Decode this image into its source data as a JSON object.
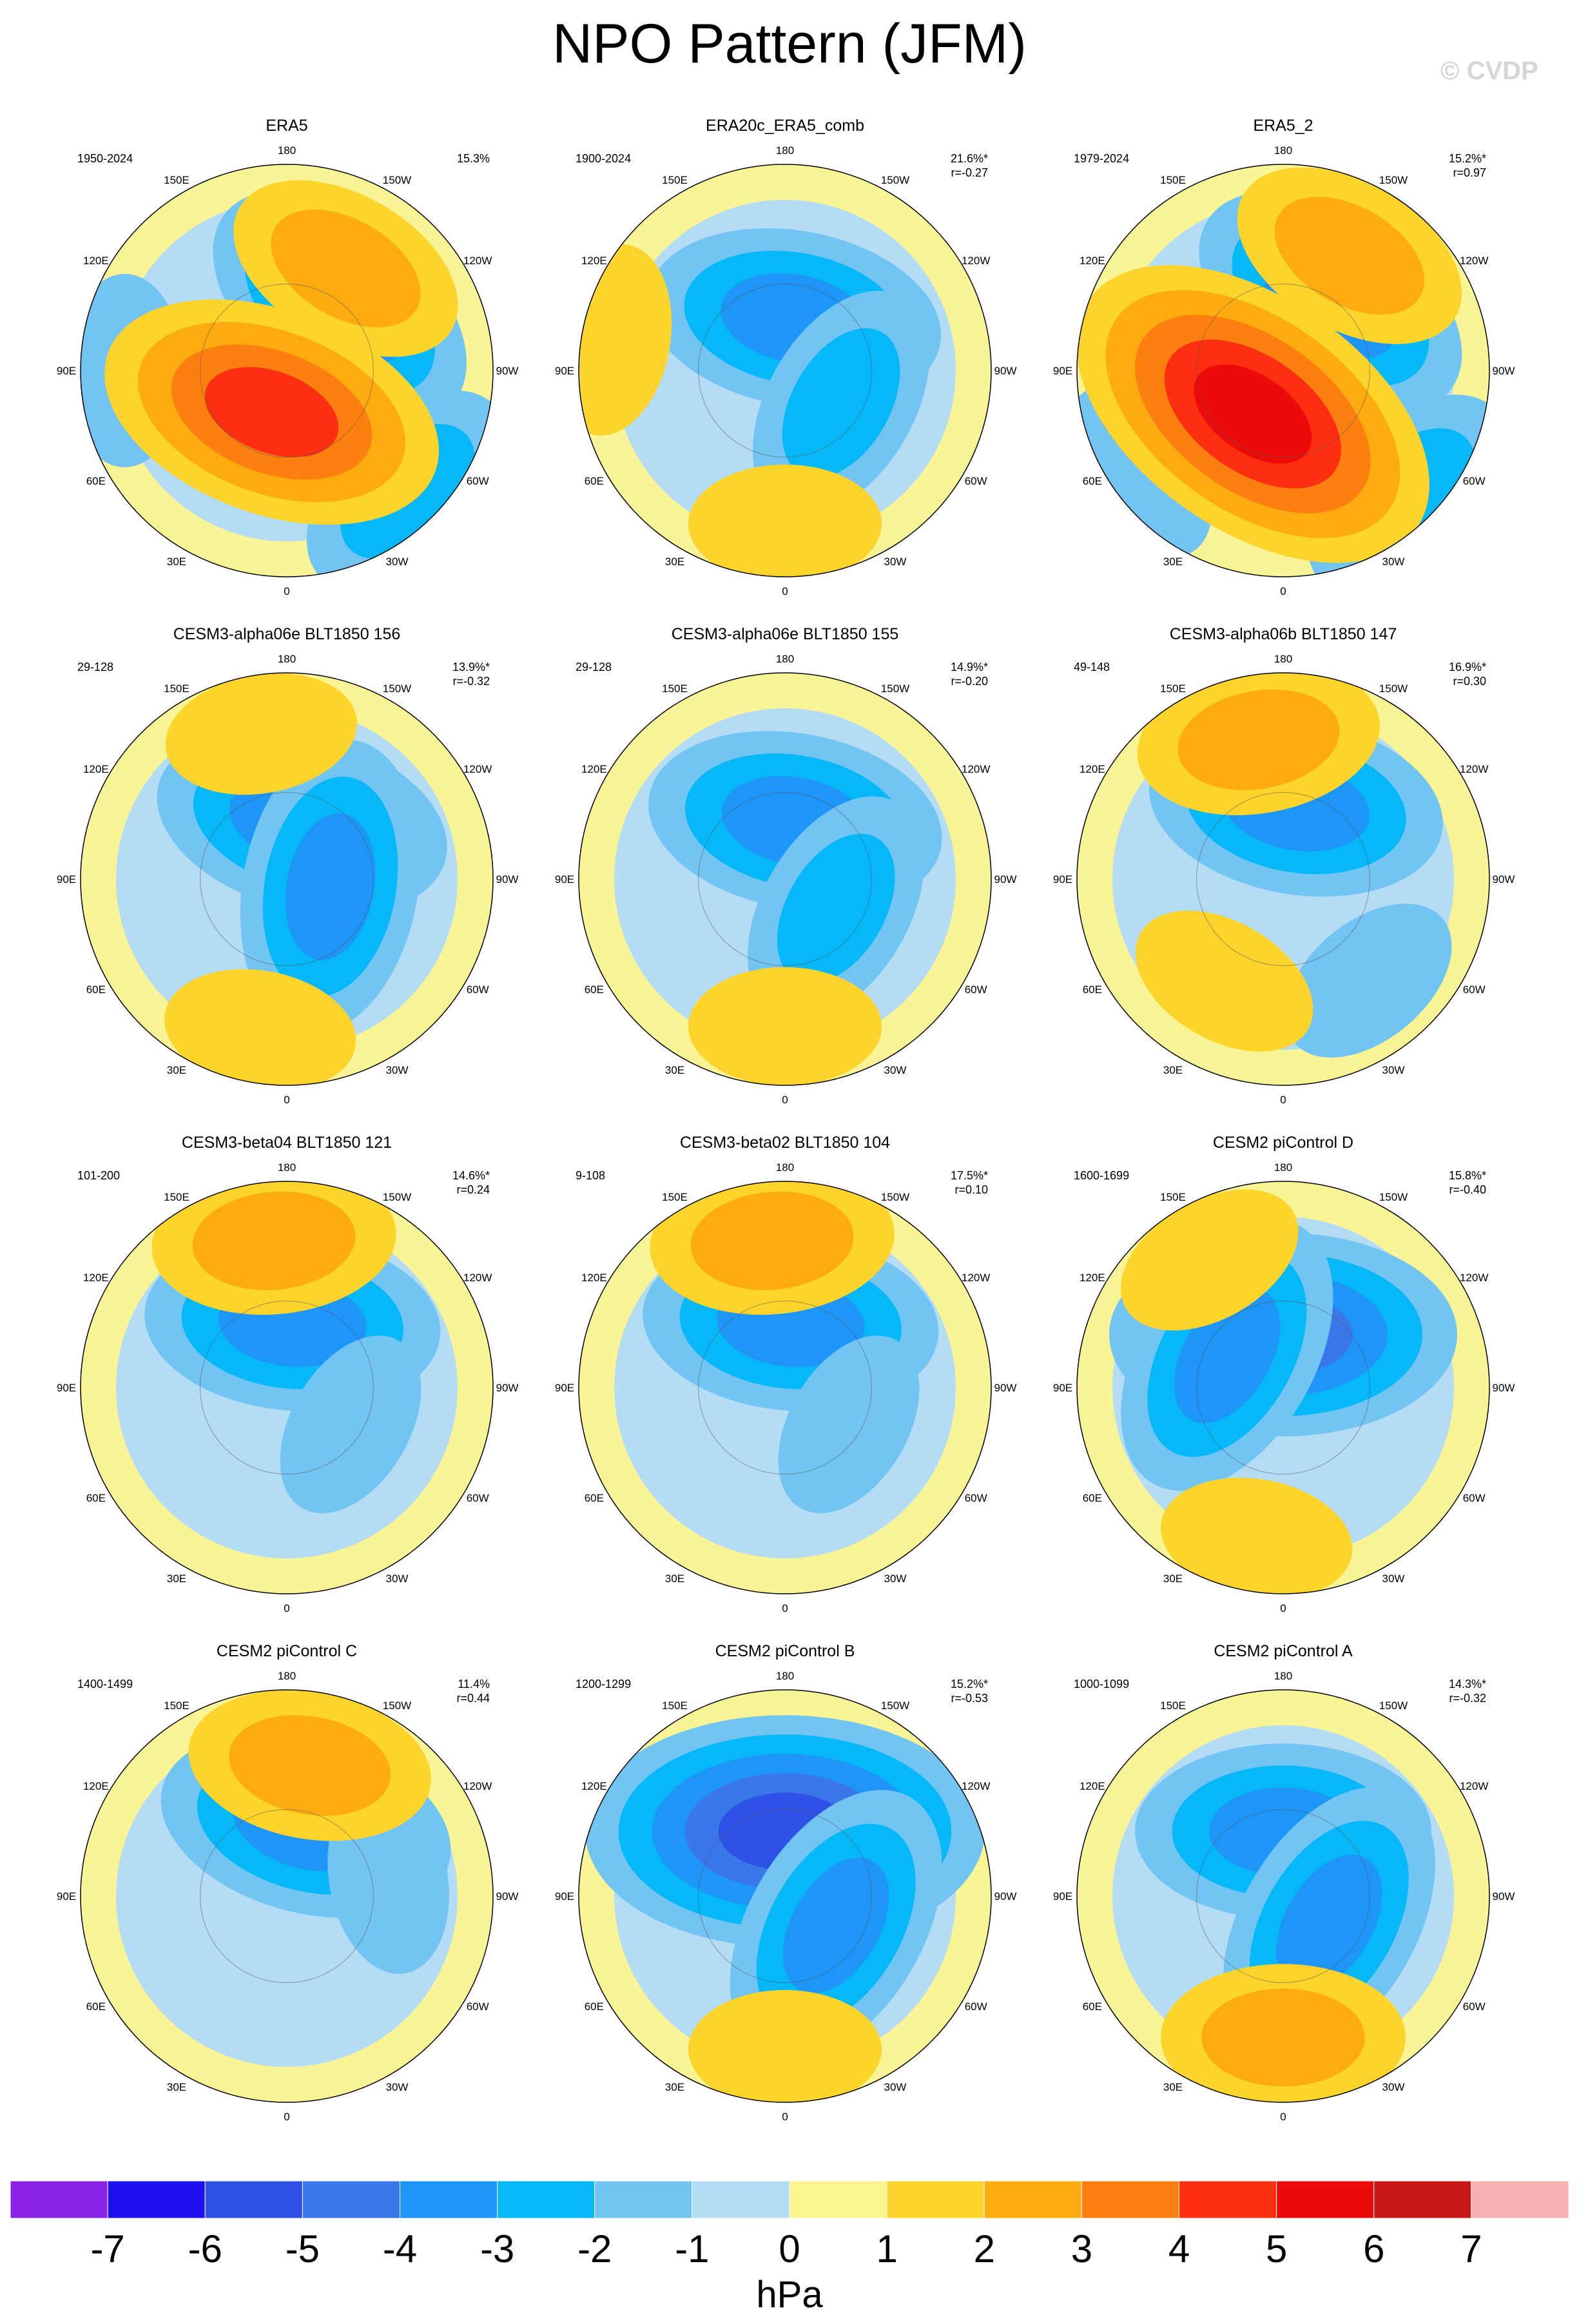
{
  "title": "NPO Pattern (JFM)",
  "watermark": "© CVDP",
  "colorbar": {
    "unit": "hPa",
    "labels": [
      "-7",
      "-6",
      "-5",
      "-4",
      "-3",
      "-2",
      "-1",
      "0",
      "1",
      "2",
      "3",
      "4",
      "5",
      "6",
      "7"
    ],
    "colors": [
      "#8a22e6",
      "#1e10f0",
      "#2e52e6",
      "#3a78ea",
      "#1e96f8",
      "#06b8f8",
      "#72c4f2",
      "#b4dcf4",
      "#fdf690",
      "#fcd42c",
      "#fcac10",
      "#fc8010",
      "#fc3010",
      "#ec0a0a",
      "#c81818",
      "#fab0b0"
    ]
  },
  "map_common": {
    "lon_labels": [
      "180",
      "150E",
      "120E",
      "90E",
      "60E",
      "30E",
      "0",
      "30W",
      "60W",
      "90W",
      "120W",
      "150W"
    ]
  },
  "chart_data": [
    {
      "type": "heatmap",
      "title": "ERA5",
      "period": "1950-2024",
      "pct": "15.3%",
      "r": "",
      "highs": [
        {
          "lon": -150,
          "lat": 50,
          "value": 2
        },
        {
          "lon": 20,
          "lat": 75,
          "value": 4
        }
      ],
      "lows": [
        {
          "lon": -140,
          "lat": 62,
          "value": -3
        },
        {
          "lon": -45,
          "lat": 32,
          "value": -2
        },
        {
          "lon": 90,
          "lat": 35,
          "value": -1
        }
      ]
    },
    {
      "type": "heatmap",
      "title": "ERA20c_ERA5_comb",
      "period": "1900-2024",
      "pct": "21.6%*",
      "r": "r=-0.27",
      "highs": [
        {
          "lon": 0,
          "lat": 38,
          "value": 1
        },
        {
          "lon": 100,
          "lat": 30,
          "value": 1
        }
      ],
      "lows": [
        {
          "lon": -170,
          "lat": 72,
          "value": -3
        },
        {
          "lon": -60,
          "lat": 68,
          "value": -2
        }
      ]
    },
    {
      "type": "heatmap",
      "title": "ERA5_2",
      "period": "1979-2024",
      "pct": "15.2%*",
      "r": "r=0.97",
      "highs": [
        {
          "lon": -150,
          "lat": 45,
          "value": 2
        },
        {
          "lon": 35,
          "lat": 72,
          "value": 5
        }
      ],
      "lows": [
        {
          "lon": -145,
          "lat": 62,
          "value": -3
        },
        {
          "lon": -45,
          "lat": 30,
          "value": -2
        },
        {
          "lon": 55,
          "lat": 30,
          "value": -1
        }
      ]
    },
    {
      "type": "heatmap",
      "title": "CESM3-alpha06e BLT1850 156",
      "period": "29-128",
      "pct": "13.9%*",
      "r": "r=-0.32",
      "highs": [
        {
          "lon": 170,
          "lat": 40,
          "value": 1
        },
        {
          "lon": 10,
          "lat": 38,
          "value": 1
        }
      ],
      "lows": [
        {
          "lon": -165,
          "lat": 70,
          "value": -3
        },
        {
          "lon": -80,
          "lat": 75,
          "value": -3
        }
      ]
    },
    {
      "type": "heatmap",
      "title": "CESM3-alpha06e BLT1850 155",
      "period": "29-128",
      "pct": "14.9%*",
      "r": "r=-0.20",
      "highs": [
        {
          "lon": 0,
          "lat": 40,
          "value": 1
        }
      ],
      "lows": [
        {
          "lon": -170,
          "lat": 70,
          "value": -3
        },
        {
          "lon": -60,
          "lat": 70,
          "value": -2
        }
      ]
    },
    {
      "type": "heatmap",
      "title": "CESM3-alpha06b BLT1850 147",
      "period": "49-148",
      "pct": "16.9%*",
      "r": "r=0.30",
      "highs": [
        {
          "lon": 170,
          "lat": 42,
          "value": 2
        },
        {
          "lon": 30,
          "lat": 50,
          "value": 1
        }
      ],
      "lows": [
        {
          "lon": -170,
          "lat": 65,
          "value": -3
        },
        {
          "lon": -40,
          "lat": 45,
          "value": -1
        }
      ]
    },
    {
      "type": "heatmap",
      "title": "CESM3-beta04 BLT1850 121",
      "period": "101-200",
      "pct": "14.6%*",
      "r": "r=0.24",
      "highs": [
        {
          "lon": 175,
          "lat": 40,
          "value": 2
        }
      ],
      "lows": [
        {
          "lon": -175,
          "lat": 68,
          "value": -3
        },
        {
          "lon": -60,
          "lat": 65,
          "value": -1
        }
      ]
    },
    {
      "type": "heatmap",
      "title": "CESM3-beta02 BLT1850 104",
      "period": "9-108",
      "pct": "17.5%*",
      "r": "r=0.10",
      "highs": [
        {
          "lon": 175,
          "lat": 40,
          "value": 2
        }
      ],
      "lows": [
        {
          "lon": -175,
          "lat": 68,
          "value": -3
        },
        {
          "lon": -60,
          "lat": 65,
          "value": -1
        }
      ]
    },
    {
      "type": "heatmap",
      "title": "CESM2 piControl D",
      "period": "1600-1699",
      "pct": "15.8%*",
      "r": "r=-0.40",
      "highs": [
        {
          "lon": 150,
          "lat": 40,
          "value": 1
        },
        {
          "lon": 10,
          "lat": 38,
          "value": 1
        }
      ],
      "lows": [
        {
          "lon": -180,
          "lat": 72,
          "value": -4
        },
        {
          "lon": 120,
          "lat": 68,
          "value": -3
        }
      ]
    },
    {
      "type": "heatmap",
      "title": "CESM2 piControl C",
      "period": "1400-1499",
      "pct": "11.4%",
      "r": "r=0.44",
      "highs": [
        {
          "lon": -170,
          "lat": 45,
          "value": 2
        }
      ],
      "lows": [
        {
          "lon": -165,
          "lat": 65,
          "value": -3
        },
        {
          "lon": -100,
          "lat": 55,
          "value": -1
        }
      ]
    },
    {
      "type": "heatmap",
      "title": "CESM2 piControl B",
      "period": "1200-1299",
      "pct": "15.2%*",
      "r": "r=-0.53",
      "highs": [
        {
          "lon": 0,
          "lat": 38,
          "value": 1
        }
      ],
      "lows": [
        {
          "lon": -180,
          "lat": 68,
          "value": -5
        },
        {
          "lon": -60,
          "lat": 70,
          "value": -3
        }
      ]
    },
    {
      "type": "heatmap",
      "title": "CESM2 piControl A",
      "period": "1000-1099",
      "pct": "14.3%*",
      "r": "r=-0.32",
      "highs": [
        {
          "lon": 0,
          "lat": 42,
          "value": 2
        }
      ],
      "lows": [
        {
          "lon": -180,
          "lat": 68,
          "value": -3
        },
        {
          "lon": -60,
          "lat": 72,
          "value": -3
        }
      ]
    }
  ]
}
